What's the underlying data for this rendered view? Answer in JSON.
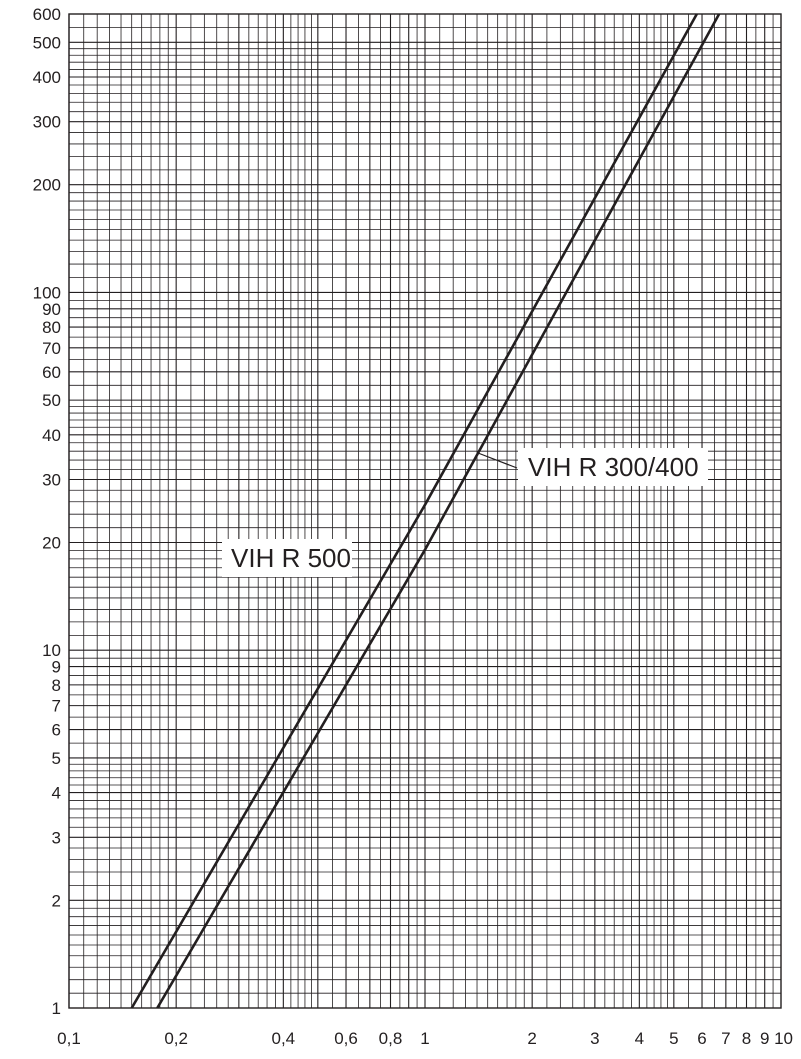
{
  "chart_data": {
    "type": "line",
    "title": "",
    "xlabel": "",
    "ylabel": "",
    "xscale": "log",
    "yscale": "log",
    "xlim": [
      0.1,
      10
    ],
    "ylim": [
      1,
      600
    ],
    "grid": true,
    "x_ticks": [
      {
        "value": 0.1,
        "label": "0,1"
      },
      {
        "value": 0.2,
        "label": "0,2"
      },
      {
        "value": 0.4,
        "label": "0,4"
      },
      {
        "value": 0.6,
        "label": "0,6"
      },
      {
        "value": 0.8,
        "label": "0,8"
      },
      {
        "value": 1,
        "label": "1"
      },
      {
        "value": 2,
        "label": "2"
      },
      {
        "value": 3,
        "label": "3"
      },
      {
        "value": 4,
        "label": "4"
      },
      {
        "value": 5,
        "label": "5"
      },
      {
        "value": 6,
        "label": "6"
      },
      {
        "value": 7,
        "label": "7"
      },
      {
        "value": 8,
        "label": "8"
      },
      {
        "value": 9,
        "label": "9"
      },
      {
        "value": 10,
        "label": "10"
      }
    ],
    "y_ticks": [
      {
        "value": 1,
        "label": "1"
      },
      {
        "value": 2,
        "label": "2"
      },
      {
        "value": 3,
        "label": "3"
      },
      {
        "value": 4,
        "label": "4"
      },
      {
        "value": 5,
        "label": "5"
      },
      {
        "value": 6,
        "label": "6"
      },
      {
        "value": 7,
        "label": "7"
      },
      {
        "value": 8,
        "label": "8"
      },
      {
        "value": 9,
        "label": "9"
      },
      {
        "value": 10,
        "label": "10"
      },
      {
        "value": 20,
        "label": "20"
      },
      {
        "value": 30,
        "label": "30"
      },
      {
        "value": 40,
        "label": "40"
      },
      {
        "value": 50,
        "label": "50"
      },
      {
        "value": 60,
        "label": "60"
      },
      {
        "value": 70,
        "label": "70"
      },
      {
        "value": 80,
        "label": "80"
      },
      {
        "value": 90,
        "label": "90"
      },
      {
        "value": 100,
        "label": "100"
      },
      {
        "value": 200,
        "label": "200"
      },
      {
        "value": 300,
        "label": "300"
      },
      {
        "value": 400,
        "label": "400"
      },
      {
        "value": 500,
        "label": "500"
      },
      {
        "value": 600,
        "label": "600"
      }
    ],
    "series": [
      {
        "name": "VIH R 500",
        "points": [
          [
            0.15,
            1
          ],
          [
            1,
            25.5
          ],
          [
            5.8,
            600
          ]
        ]
      },
      {
        "name": "VIH R 300/400",
        "points": [
          [
            0.177,
            1
          ],
          [
            1,
            19.1
          ],
          [
            6.7,
            600
          ]
        ]
      }
    ]
  }
}
